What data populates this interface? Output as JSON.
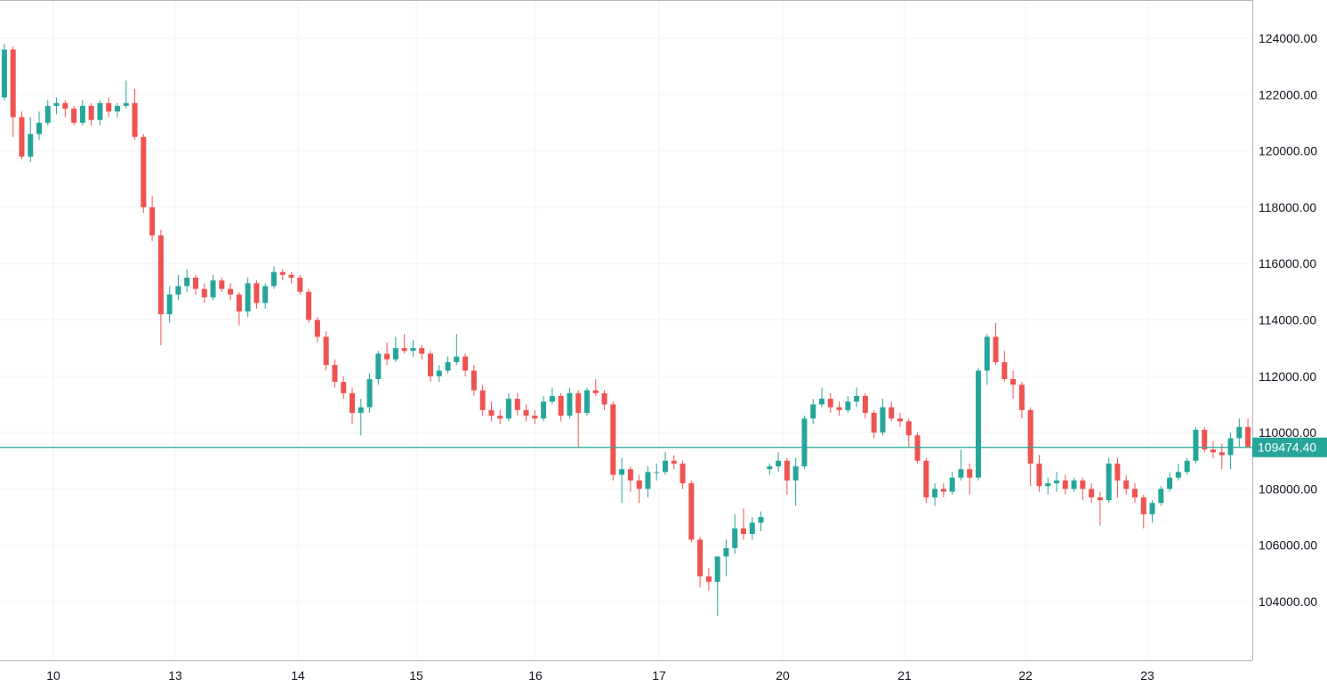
{
  "chart_data": {
    "type": "candlestick",
    "title": "",
    "xlabel": "",
    "ylabel": "",
    "ylim": [
      101900,
      125360
    ],
    "grid": true,
    "y_ticks": [
      "104000.00",
      "106000.00",
      "108000.00",
      "110000.00",
      "112000.00",
      "114000.00",
      "116000.00",
      "118000.00",
      "120000.00",
      "122000.00",
      "124000.00"
    ],
    "x_ticks": [
      "10",
      "13",
      "14",
      "15",
      "16",
      "17",
      "20",
      "21",
      "22",
      "23"
    ],
    "current_price": 109474.4,
    "current_price_label": "109474.40",
    "colors": {
      "up": "#26a69a",
      "down": "#ef5350",
      "grid": "#f0f3fa",
      "axis": "#b2b5be"
    },
    "candles_ohlc": [
      [
        121900,
        123800,
        121800,
        123600
      ],
      [
        123600,
        123700,
        120500,
        121200
      ],
      [
        121200,
        121400,
        119700,
        119800
      ],
      [
        119800,
        121200,
        119600,
        120600
      ],
      [
        120600,
        121400,
        120400,
        121000
      ],
      [
        121000,
        121800,
        120900,
        121600
      ],
      [
        121600,
        121900,
        121300,
        121700
      ],
      [
        121700,
        121800,
        121200,
        121500
      ],
      [
        121500,
        121600,
        120900,
        121000
      ],
      [
        121000,
        121800,
        120900,
        121600
      ],
      [
        121600,
        121700,
        120900,
        121100
      ],
      [
        121100,
        121800,
        120900,
        121700
      ],
      [
        121700,
        121900,
        121200,
        121400
      ],
      [
        121400,
        121700,
        121200,
        121600
      ],
      [
        121600,
        122500,
        121500,
        121700
      ],
      [
        121700,
        122200,
        120400,
        120500
      ],
      [
        120500,
        120600,
        117800,
        118000
      ],
      [
        118000,
        118400,
        116800,
        117000
      ],
      [
        117000,
        117200,
        113100,
        114200
      ],
      [
        114200,
        115200,
        113900,
        114900
      ],
      [
        114900,
        115600,
        114700,
        115200
      ],
      [
        115200,
        115800,
        115000,
        115500
      ],
      [
        115500,
        115600,
        114900,
        115100
      ],
      [
        115100,
        115300,
        114600,
        114800
      ],
      [
        114800,
        115600,
        114700,
        115400
      ],
      [
        115400,
        115500,
        115000,
        115100
      ],
      [
        115100,
        115300,
        114700,
        114900
      ],
      [
        114900,
        115000,
        113800,
        114300
      ],
      [
        114300,
        115500,
        114100,
        115300
      ],
      [
        115300,
        115400,
        114400,
        114600
      ],
      [
        114600,
        115300,
        114400,
        115200
      ],
      [
        115200,
        115900,
        115100,
        115700
      ],
      [
        115700,
        115800,
        115400,
        115600
      ],
      [
        115600,
        115700,
        115300,
        115500
      ],
      [
        115500,
        115600,
        114900,
        115000
      ],
      [
        115000,
        115100,
        113900,
        114000
      ],
      [
        114000,
        114100,
        113200,
        113400
      ],
      [
        113400,
        113600,
        112200,
        112400
      ],
      [
        112400,
        112600,
        111600,
        111800
      ],
      [
        111800,
        112000,
        111200,
        111400
      ],
      [
        111400,
        111600,
        110300,
        110700
      ],
      [
        110700,
        111200,
        109900,
        110900
      ],
      [
        110900,
        112100,
        110700,
        111900
      ],
      [
        111900,
        112900,
        111700,
        112800
      ],
      [
        112800,
        113200,
        112400,
        112600
      ],
      [
        112600,
        113400,
        112500,
        113000
      ],
      [
        113000,
        113500,
        112800,
        112900
      ],
      [
        112900,
        113300,
        112700,
        113000
      ],
      [
        113000,
        113100,
        112600,
        112800
      ],
      [
        112800,
        112900,
        111800,
        112000
      ],
      [
        112000,
        112400,
        111800,
        112200
      ],
      [
        112200,
        112700,
        112100,
        112500
      ],
      [
        112500,
        113500,
        112400,
        112700
      ],
      [
        112700,
        112800,
        112000,
        112200
      ],
      [
        112200,
        112400,
        111300,
        111500
      ],
      [
        111500,
        111700,
        110600,
        110800
      ],
      [
        110800,
        111100,
        110400,
        110600
      ],
      [
        110600,
        110800,
        110300,
        110500
      ],
      [
        110500,
        111400,
        110400,
        111200
      ],
      [
        111200,
        111400,
        110600,
        110800
      ],
      [
        110800,
        111000,
        110400,
        110600
      ],
      [
        110600,
        110800,
        110300,
        110500
      ],
      [
        110500,
        111300,
        110400,
        111100
      ],
      [
        111100,
        111600,
        111000,
        111300
      ],
      [
        111300,
        111400,
        110400,
        110600
      ],
      [
        110600,
        111600,
        110500,
        111400
      ],
      [
        111400,
        111500,
        109500,
        110700
      ],
      [
        110700,
        111600,
        110600,
        111500
      ],
      [
        111500,
        111900,
        111300,
        111400
      ],
      [
        111400,
        111500,
        110800,
        111000
      ],
      [
        111000,
        111100,
        108300,
        108500
      ],
      [
        108500,
        109100,
        107500,
        108700
      ],
      [
        108700,
        108800,
        107900,
        108300
      ],
      [
        108300,
        108500,
        107500,
        108000
      ],
      [
        108000,
        108800,
        107700,
        108600
      ],
      [
        108600,
        108900,
        108300,
        108600
      ],
      [
        108600,
        109300,
        108500,
        109000
      ],
      [
        109000,
        109200,
        108700,
        108900
      ],
      [
        108900,
        109000,
        108000,
        108200
      ],
      [
        108200,
        108300,
        106100,
        106200
      ],
      [
        106200,
        106300,
        104500,
        104900
      ],
      [
        104900,
        105200,
        104400,
        104700
      ],
      [
        104700,
        105600,
        103500,
        105600
      ],
      [
        105600,
        106200,
        104900,
        105900
      ],
      [
        105900,
        107100,
        105700,
        106600
      ],
      [
        106600,
        107300,
        106200,
        106400
      ],
      [
        106400,
        107000,
        106200,
        106800
      ],
      [
        106800,
        107200,
        106500,
        107000
      ],
      [
        108700,
        108900,
        108500,
        108800
      ],
      [
        108800,
        109300,
        108600,
        109000
      ],
      [
        109000,
        109100,
        107800,
        108300
      ],
      [
        108300,
        109100,
        107400,
        108800
      ],
      [
        108800,
        110600,
        108700,
        110500
      ],
      [
        110500,
        111200,
        110300,
        111000
      ],
      [
        111000,
        111600,
        110900,
        111200
      ],
      [
        111200,
        111400,
        110700,
        110900
      ],
      [
        110900,
        111100,
        110600,
        110800
      ],
      [
        110800,
        111300,
        110700,
        111100
      ],
      [
        111100,
        111600,
        110900,
        111300
      ],
      [
        111300,
        111400,
        110500,
        110700
      ],
      [
        110700,
        110800,
        109800,
        110000
      ],
      [
        110000,
        111200,
        109900,
        110900
      ],
      [
        110900,
        111100,
        110400,
        110500
      ],
      [
        110500,
        110700,
        110200,
        110400
      ],
      [
        110400,
        110500,
        109500,
        109900
      ],
      [
        109900,
        110000,
        108900,
        109000
      ],
      [
        109000,
        109100,
        107500,
        107700
      ],
      [
        107700,
        108200,
        107400,
        108000
      ],
      [
        108000,
        108200,
        107700,
        107900
      ],
      [
        107900,
        108600,
        107800,
        108400
      ],
      [
        108400,
        109400,
        108300,
        108700
      ],
      [
        108700,
        108900,
        107800,
        108400
      ],
      [
        108400,
        112300,
        108300,
        112200
      ],
      [
        112200,
        113500,
        111700,
        113400
      ],
      [
        113400,
        113900,
        112400,
        112500
      ],
      [
        112500,
        112900,
        111800,
        111900
      ],
      [
        111900,
        112200,
        111200,
        111700
      ],
      [
        111700,
        111800,
        110500,
        110800
      ],
      [
        110800,
        110900,
        108100,
        108900
      ],
      [
        108900,
        109200,
        107900,
        108100
      ],
      [
        108100,
        108400,
        107800,
        108200
      ],
      [
        108200,
        108600,
        107900,
        108300
      ],
      [
        108300,
        108500,
        107800,
        108000
      ],
      [
        108000,
        108400,
        107900,
        108300
      ],
      [
        108300,
        108400,
        107600,
        108000
      ],
      [
        108000,
        108200,
        107500,
        107700
      ],
      [
        107700,
        107900,
        106700,
        107600
      ],
      [
        107600,
        109100,
        107500,
        108900
      ],
      [
        108900,
        109100,
        107700,
        108300
      ],
      [
        108300,
        108500,
        107800,
        108000
      ],
      [
        108000,
        108200,
        107500,
        107700
      ],
      [
        107700,
        107800,
        106600,
        107100
      ],
      [
        107100,
        107600,
        106800,
        107500
      ],
      [
        107500,
        108100,
        107400,
        108000
      ],
      [
        108000,
        108600,
        107900,
        108400
      ],
      [
        108400,
        108900,
        108300,
        108600
      ],
      [
        108600,
        109100,
        108500,
        109000
      ],
      [
        109000,
        110200,
        108900,
        110100
      ],
      [
        110100,
        110200,
        109300,
        109400
      ],
      [
        109400,
        109700,
        109100,
        109300
      ],
      [
        109300,
        109600,
        108700,
        109200
      ],
      [
        109200,
        110000,
        108700,
        109800
      ],
      [
        109800,
        110500,
        109500,
        110200
      ],
      [
        110200,
        110500,
        109500,
        109500
      ]
    ]
  }
}
